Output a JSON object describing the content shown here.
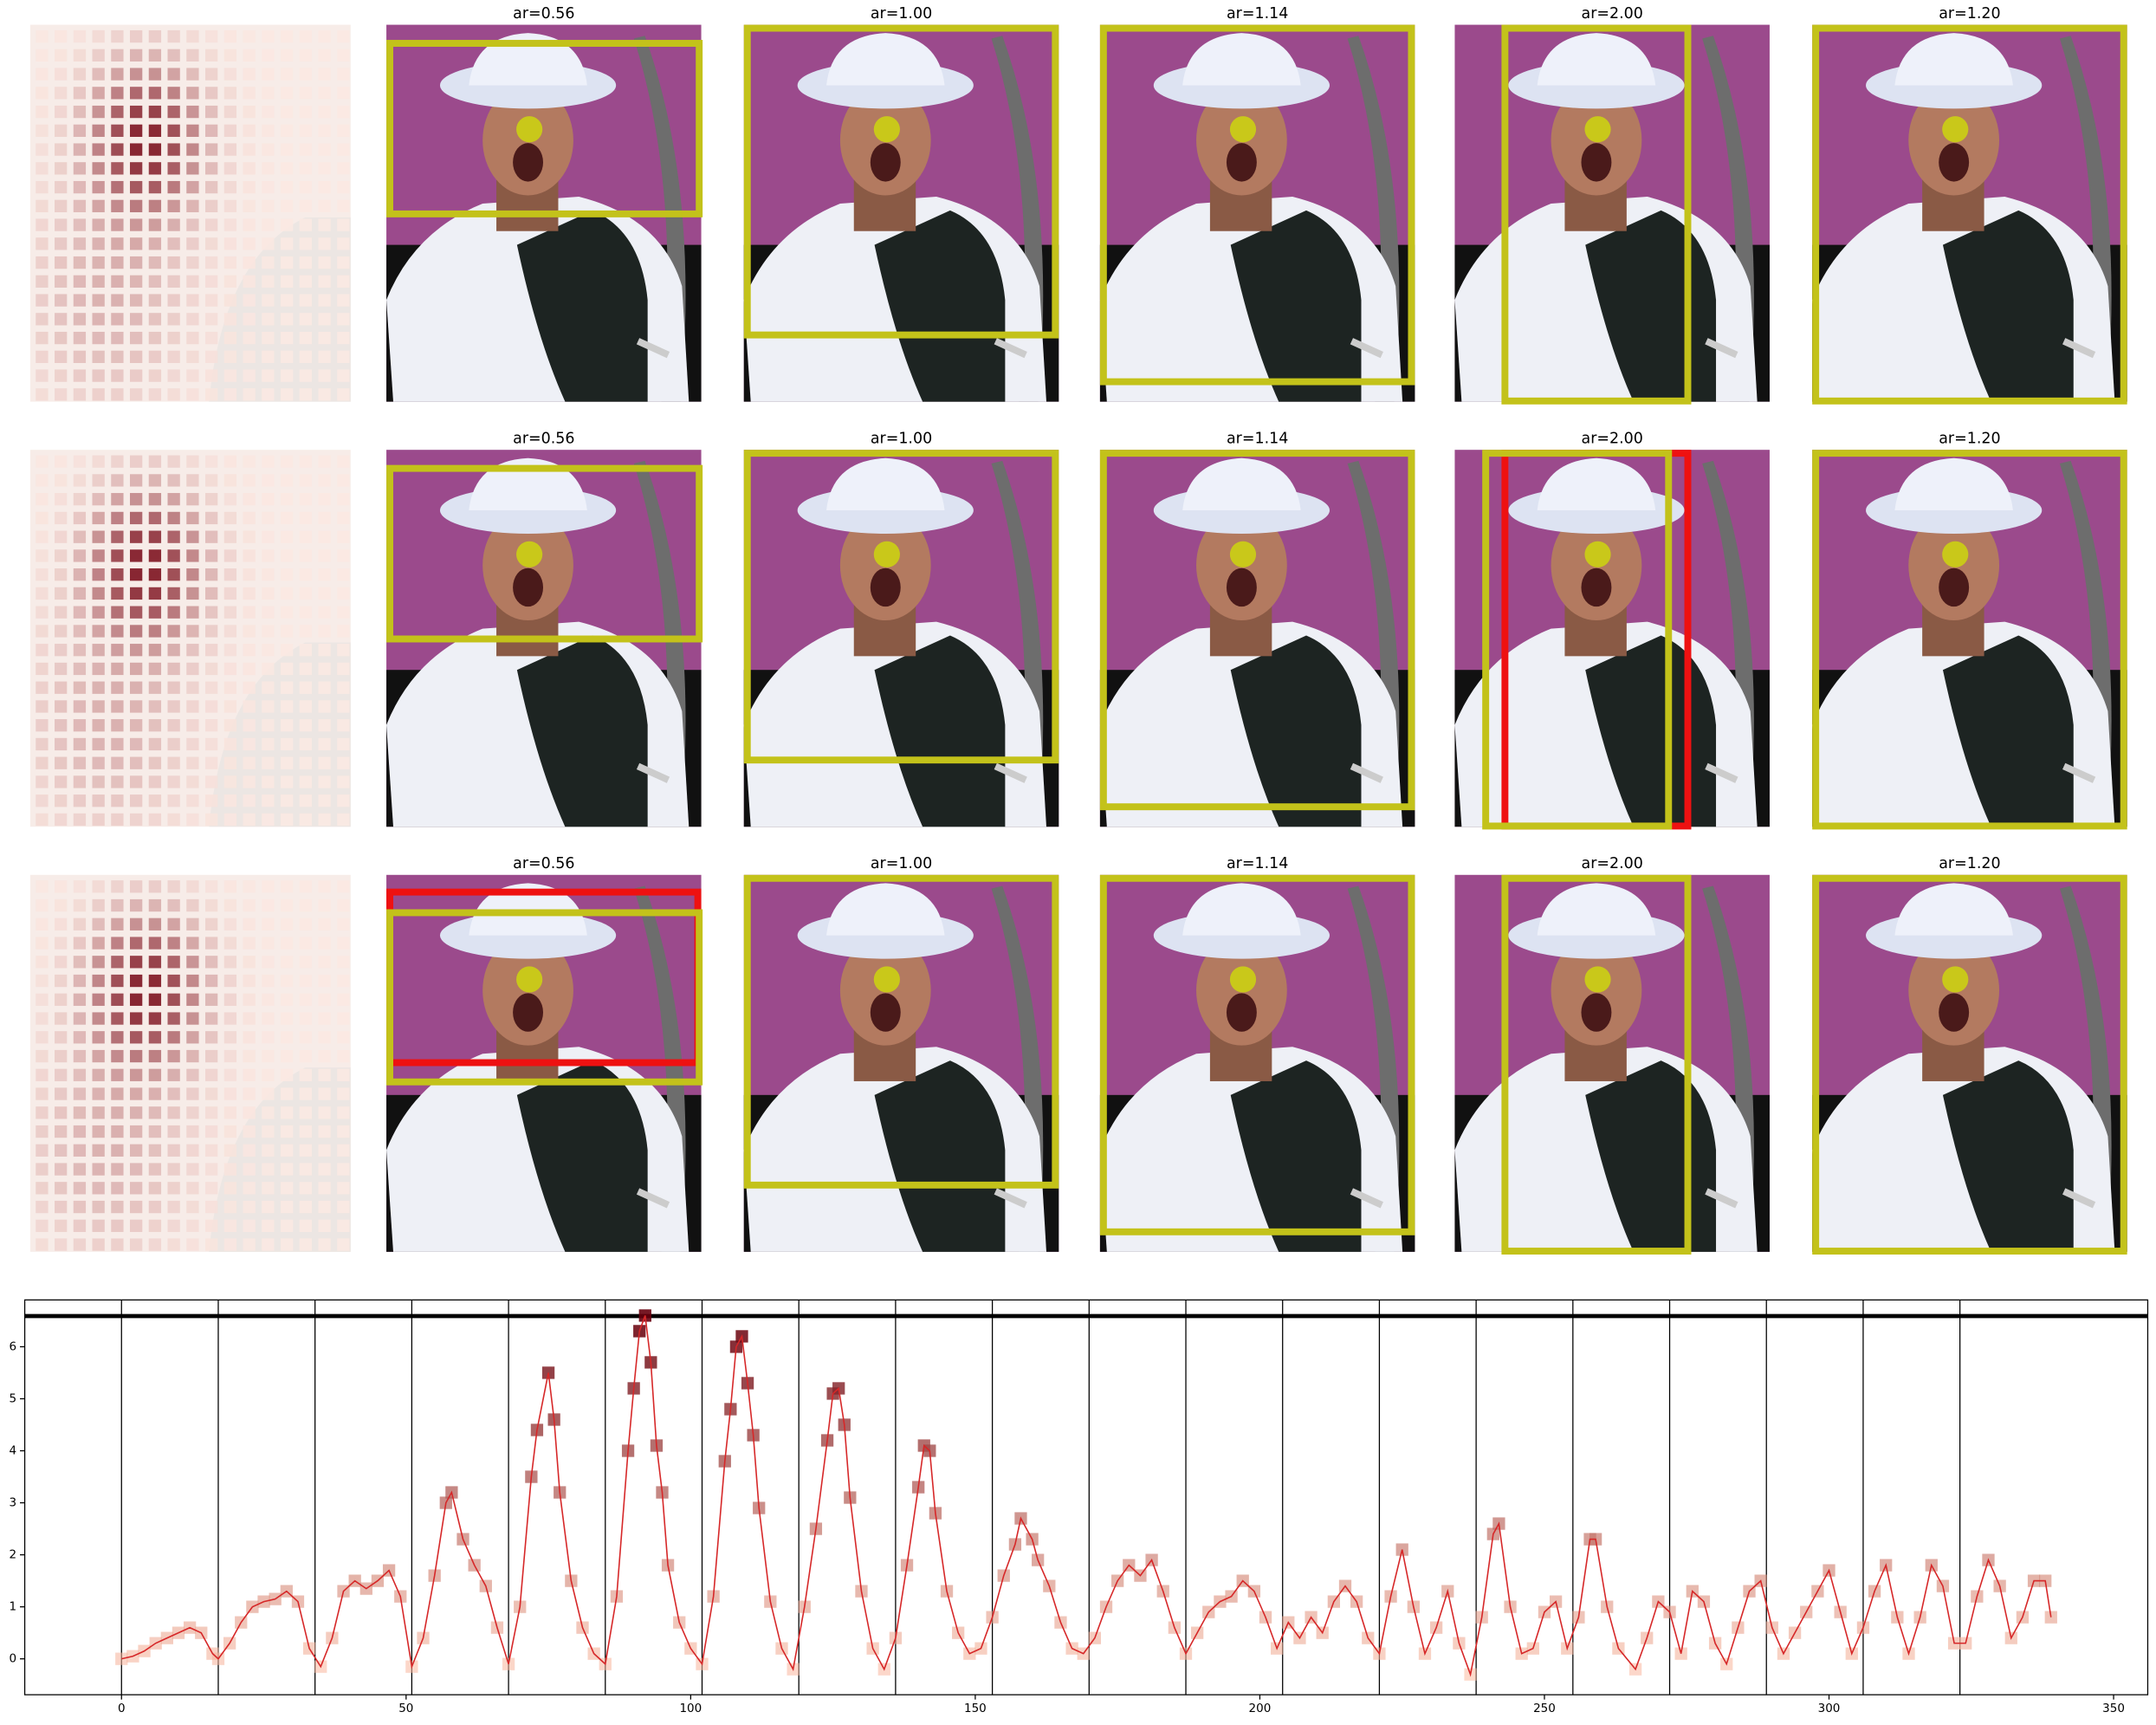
{
  "panels": {
    "titles": [
      [
        "ar=0.56",
        "ar=1.00",
        "ar=1.14",
        "ar=2.00",
        "ar=1.20"
      ],
      [
        "ar=0.56",
        "ar=1.00",
        "ar=1.14",
        "ar=2.00",
        "ar=1.20"
      ],
      [
        "ar=0.56",
        "ar=1.00",
        "ar=1.14",
        "ar=2.00",
        "ar=1.20"
      ]
    ]
  },
  "chart_data": {
    "type": "line",
    "x": [
      0,
      2,
      4,
      6,
      8,
      10,
      12,
      14,
      16,
      17,
      19,
      21,
      23,
      25,
      27,
      29,
      31,
      33,
      35,
      37,
      39,
      41,
      43,
      45,
      47,
      49,
      51,
      53,
      55,
      57,
      58,
      60,
      62,
      64,
      66,
      68,
      70,
      72,
      73,
      75,
      76,
      77,
      79,
      81,
      83,
      85,
      87,
      89,
      90,
      91,
      92,
      93,
      94,
      95,
      96,
      98,
      100,
      102,
      104,
      106,
      107,
      108,
      109,
      110,
      111,
      112,
      114,
      116,
      118,
      120,
      122,
      124,
      125,
      126,
      127,
      128,
      130,
      132,
      134,
      136,
      138,
      140,
      141,
      142,
      143,
      145,
      147,
      149,
      151,
      153,
      155,
      157,
      158,
      160,
      161,
      163,
      165,
      167,
      169,
      171,
      173,
      175,
      177,
      179,
      181,
      183,
      185,
      187,
      189,
      191,
      193,
      195,
      197,
      199,
      201,
      203,
      205,
      207,
      209,
      211,
      213,
      215,
      217,
      219,
      221,
      223,
      225,
      227,
      229,
      231,
      233,
      235,
      237,
      239,
      241,
      242,
      244,
      246,
      248,
      250,
      252,
      254,
      256,
      258,
      259,
      261,
      263,
      266,
      268,
      270,
      272,
      274,
      276,
      278,
      280,
      282,
      284,
      286,
      288,
      290,
      292,
      294,
      296,
      298,
      300,
      302,
      304,
      306,
      308,
      310,
      312,
      314,
      316,
      318,
      320,
      322,
      324,
      326,
      328,
      330,
      332,
      334,
      336,
      338,
      339
    ],
    "series": [
      {
        "color": "#d62728",
        "marker_colors": [
          "#fcbba1",
          "#67000d"
        ],
        "values": [
          0,
          0.05,
          0.15,
          0.3,
          0.4,
          0.5,
          0.6,
          0.5,
          0.1,
          0,
          0.3,
          0.7,
          1.0,
          1.1,
          1.15,
          1.3,
          1.1,
          0.2,
          -0.15,
          0.4,
          1.3,
          1.5,
          1.35,
          1.5,
          1.7,
          1.2,
          -0.15,
          0.4,
          1.6,
          3.0,
          3.2,
          2.3,
          1.8,
          1.4,
          0.6,
          -0.1,
          1.0,
          3.5,
          4.4,
          5.5,
          4.6,
          3.2,
          1.5,
          0.6,
          0.1,
          -0.1,
          1.2,
          4.0,
          5.2,
          6.3,
          6.6,
          5.7,
          4.1,
          3.2,
          1.8,
          0.7,
          0.2,
          -0.1,
          1.2,
          3.8,
          4.8,
          6.0,
          6.2,
          5.3,
          4.3,
          2.9,
          1.1,
          0.2,
          -0.2,
          1.0,
          2.5,
          4.2,
          5.1,
          5.2,
          4.5,
          3.1,
          1.3,
          0.2,
          -0.2,
          0.4,
          1.8,
          3.3,
          4.1,
          4.0,
          2.8,
          1.3,
          0.5,
          0.1,
          0.2,
          0.8,
          1.6,
          2.2,
          2.7,
          2.3,
          1.9,
          1.4,
          0.7,
          0.2,
          0.1,
          0.4,
          1.0,
          1.5,
          1.8,
          1.6,
          1.9,
          1.3,
          0.6,
          0.1,
          0.5,
          0.9,
          1.1,
          1.2,
          1.5,
          1.3,
          0.8,
          0.2,
          0.7,
          0.4,
          0.8,
          0.5,
          1.1,
          1.4,
          1.1,
          0.4,
          0.1,
          1.2,
          2.1,
          1.0,
          0.1,
          0.6,
          1.3,
          0.3,
          -0.3,
          0.8,
          2.4,
          2.6,
          1.0,
          0.1,
          0.2,
          0.9,
          1.1,
          0.2,
          0.8,
          2.3,
          2.3,
          1.0,
          0.2,
          -0.2,
          0.4,
          1.1,
          0.9,
          0.1,
          1.3,
          1.1,
          0.3,
          -0.1,
          0.6,
          1.3,
          1.5,
          0.6,
          0.1,
          0.5,
          0.9,
          1.3,
          1.7,
          0.9,
          0.1,
          0.6,
          1.3,
          1.8,
          0.8,
          0.1,
          0.8,
          1.8,
          1.4,
          0.3,
          0.3,
          1.2,
          1.9,
          1.4,
          0.4,
          0.8,
          1.5,
          1.5,
          0.8
        ]
      }
    ],
    "xlim": [
      -17,
      356
    ],
    "ylim": [
      -0.69,
      6.9
    ],
    "xticks": [
      0,
      50,
      100,
      150,
      200,
      250,
      300,
      350
    ],
    "yticks": [
      0,
      1,
      2,
      3,
      4,
      5,
      6
    ],
    "vlines": [
      0,
      17,
      34,
      51,
      68,
      85,
      102,
      119,
      136,
      153,
      170,
      187,
      204,
      221,
      238,
      255,
      272,
      289,
      306,
      323
    ],
    "hline": 6.59
  }
}
